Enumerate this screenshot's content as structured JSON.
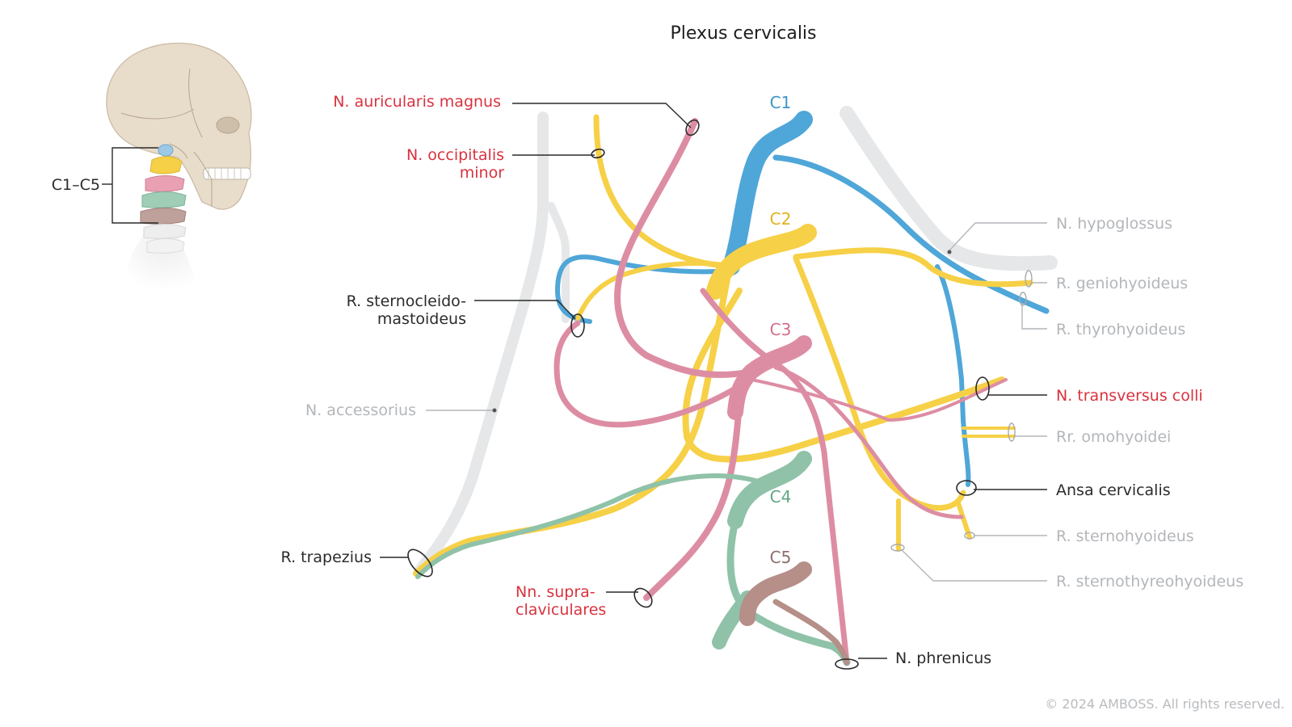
{
  "title": "Plexus cervicalis",
  "inset_label": "C1–C5",
  "roots": {
    "c1": "C1",
    "c2": "C2",
    "c3": "C3",
    "c4": "C4",
    "c5": "C5"
  },
  "labels": {
    "auricularis": "N. auricularis magnus",
    "occipitalis_1": "N. occipitalis",
    "occipitalis_2": "minor",
    "sternocleido_1": "R. sternocleido-",
    "sternocleido_2": "mastoideus",
    "accessorius": "N. accessorius",
    "trapezius": "R. trapezius",
    "supra_1": "Nn. supra-",
    "supra_2": "claviculares",
    "hypoglossus": "N. hypoglossus",
    "geniohyoideus": "R. geniohyoideus",
    "thyrohyoideus": "R. thyrohyoideus",
    "transversus": "N. transversus colli",
    "omohyoidei": "Rr. omohyoidei",
    "ansa": "Ansa cervicalis",
    "sternohyoideus": "R. sternohyoideus",
    "sternothyreohyoideus": "R. sternothyreohyoideus",
    "phrenicus": "N. phrenicus"
  },
  "copyright": "© 2024 AMBOSS. All rights reserved.",
  "colors": {
    "c1": "#4fa6d8",
    "c2": "#f6d046",
    "c3": "#dd8da3",
    "c4": "#8fc2a8",
    "c5": "#b58f88",
    "gray_nerve": "#e6e7e8",
    "red_label": "#d8333f",
    "gray_label": "#b3b6ba",
    "skull": "#e8dccb"
  }
}
